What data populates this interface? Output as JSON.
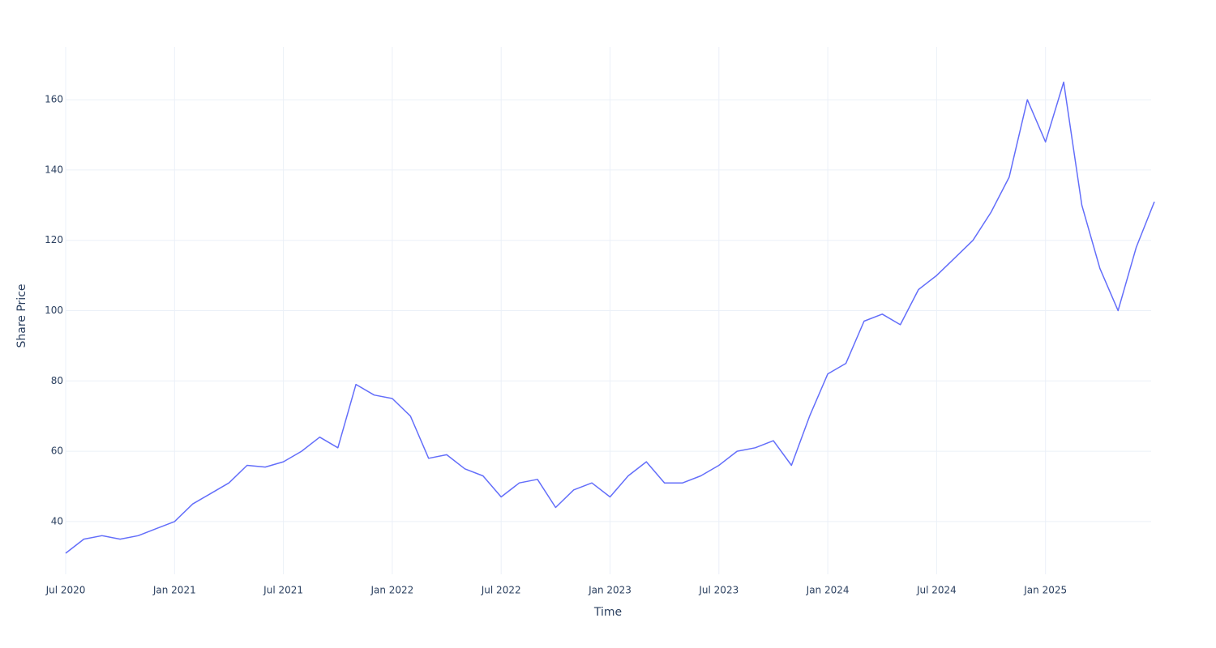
{
  "chart_data": {
    "type": "line",
    "x_label": "Time",
    "y_label": "Share Price",
    "x": [
      "2020-07",
      "2020-08",
      "2020-09",
      "2020-10",
      "2020-11",
      "2020-12",
      "2021-01",
      "2021-02",
      "2021-03",
      "2021-04",
      "2021-05",
      "2021-06",
      "2021-07",
      "2021-08",
      "2021-09",
      "2021-10",
      "2021-11",
      "2021-12",
      "2022-01",
      "2022-02",
      "2022-03",
      "2022-04",
      "2022-05",
      "2022-06",
      "2022-07",
      "2022-08",
      "2022-09",
      "2022-10",
      "2022-11",
      "2022-12",
      "2023-01",
      "2023-02",
      "2023-03",
      "2023-04",
      "2023-05",
      "2023-06",
      "2023-07",
      "2023-08",
      "2023-09",
      "2023-10",
      "2023-11",
      "2023-12",
      "2024-01",
      "2024-02",
      "2024-03",
      "2024-04",
      "2024-05",
      "2024-06",
      "2024-07",
      "2024-08",
      "2024-09",
      "2024-10",
      "2024-11",
      "2024-12",
      "2025-01",
      "2025-02",
      "2025-03",
      "2025-04",
      "2025-05",
      "2025-06",
      "2025-07"
    ],
    "series": [
      {
        "name": "Share Price",
        "color": "#636efa",
        "values": [
          31,
          35,
          36,
          35,
          36,
          38,
          40,
          45,
          48,
          51,
          56,
          55.5,
          57,
          60,
          64,
          61,
          79,
          76,
          75,
          70,
          58,
          59,
          55,
          53,
          47,
          51,
          52,
          44,
          49,
          51,
          47,
          53,
          57,
          51,
          51,
          53,
          56,
          60,
          61,
          63,
          56,
          70,
          82,
          85,
          97,
          99,
          96,
          106,
          110,
          115,
          120,
          128,
          138,
          160,
          148,
          165,
          130,
          112,
          100,
          118,
          131
        ]
      }
    ],
    "xlim": [
      "2020-07",
      "2025-07"
    ],
    "xticks": [
      {
        "value": "2020-07",
        "label": "Jul 2020"
      },
      {
        "value": "2021-01",
        "label": "Jan 2021"
      },
      {
        "value": "2021-07",
        "label": "Jul 2021"
      },
      {
        "value": "2022-01",
        "label": "Jan 2022"
      },
      {
        "value": "2022-07",
        "label": "Jul 2022"
      },
      {
        "value": "2023-01",
        "label": "Jan 2023"
      },
      {
        "value": "2023-07",
        "label": "Jul 2023"
      },
      {
        "value": "2024-01",
        "label": "Jan 2024"
      },
      {
        "value": "2024-07",
        "label": "Jul 2024"
      },
      {
        "value": "2025-01",
        "label": "Jan 2025"
      }
    ],
    "ylim": [
      25,
      175
    ],
    "yticks": [
      40,
      60,
      80,
      100,
      120,
      140,
      160
    ],
    "grid": true
  }
}
